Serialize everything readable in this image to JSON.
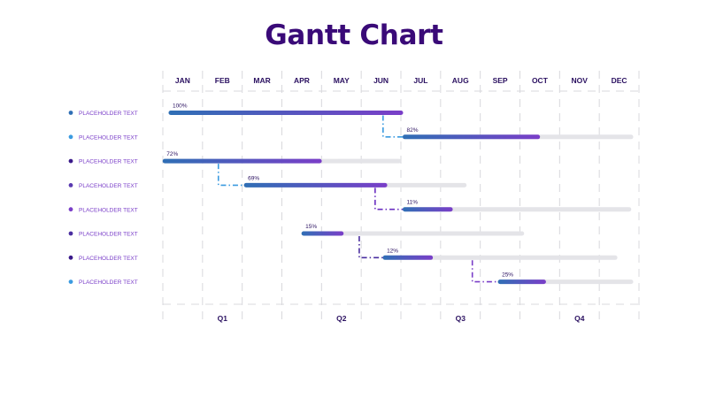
{
  "title": "Gantt Chart",
  "chart_data": {
    "type": "gantt",
    "title": "Gantt Chart",
    "months": [
      "JAN",
      "FEB",
      "MAR",
      "APR",
      "MAY",
      "JUN",
      "JUL",
      "AUG",
      "SEP",
      "OCT",
      "NOV",
      "DEC"
    ],
    "quarters": [
      "Q1",
      "Q2",
      "Q3",
      "Q4"
    ],
    "tasks": [
      {
        "label": "PLACEHOLDER TEXT",
        "dot_color": "#2f6fb5",
        "start": 0.2,
        "end": 6.0,
        "progress_label": "100%",
        "progress_end": 6.0
      },
      {
        "label": "PLACEHOLDER TEXT",
        "dot_color": "#3b9be0",
        "start": 6.1,
        "end": 11.8,
        "progress_label": "82%",
        "progress_end": 9.45
      },
      {
        "label": "PLACEHOLDER TEXT",
        "dot_color": "#3a1a8a",
        "start": 0.05,
        "end": 5.95,
        "progress_label": "72%",
        "progress_end": 3.95
      },
      {
        "label": "PLACEHOLDER TEXT",
        "dot_color": "#5a3ab0",
        "start": 2.1,
        "end": 7.6,
        "progress_label": "69%",
        "progress_end": 5.6
      },
      {
        "label": "PLACEHOLDER TEXT",
        "dot_color": "#7a3ec8",
        "start": 6.1,
        "end": 11.75,
        "progress_label": "11%",
        "progress_end": 7.25
      },
      {
        "label": "PLACEHOLDER TEXT",
        "dot_color": "#4a2ea0",
        "start": 3.55,
        "end": 9.05,
        "progress_label": "15%",
        "progress_end": 4.5
      },
      {
        "label": "PLACEHOLDER TEXT",
        "dot_color": "#3a1a8a",
        "start": 5.6,
        "end": 11.4,
        "progress_label": "12%",
        "progress_end": 6.75
      },
      {
        "label": "PLACEHOLDER TEXT",
        "dot_color": "#3b9be0",
        "start": 8.5,
        "end": 11.8,
        "progress_label": "25%",
        "progress_end": 9.6
      }
    ],
    "dependencies": [
      {
        "from": 0,
        "to": 1,
        "at": 5.55,
        "color": "#3b9be0"
      },
      {
        "from": 2,
        "to": 3,
        "at": 1.4,
        "color": "#3b9be0"
      },
      {
        "from": 3,
        "to": 4,
        "at": 5.35,
        "color": "#6a2ec0"
      },
      {
        "from": 5,
        "to": 6,
        "at": 4.95,
        "color": "#4a2ea0"
      },
      {
        "from": 6,
        "to": 7,
        "at": 7.8,
        "color": "#7a3ec8"
      }
    ],
    "colors": {
      "title": "#3a0a78",
      "header_text": "#2a1060",
      "label_text": "#7a3ec8",
      "bar_start": "#2f6fb5",
      "bar_end": "#7a3ec8",
      "track": "#e4e4e8",
      "grid": "#d8d8dc"
    }
  }
}
